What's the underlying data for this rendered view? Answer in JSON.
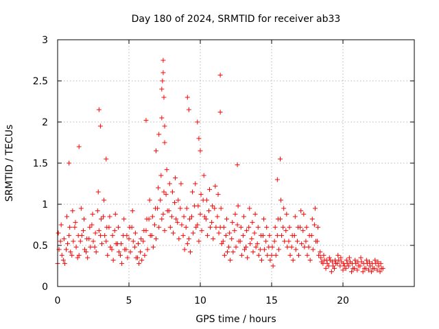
{
  "chart_data": {
    "type": "scatter",
    "title": "Day 180 of 2024, SRMTID for receiver ab33",
    "xlabel": "GPS time / hours",
    "ylabel": "SRMTID / TECUs",
    "xlim": [
      0,
      25
    ],
    "ylim": [
      0,
      3
    ],
    "xticks": [
      0,
      5,
      10,
      15,
      20
    ],
    "xtick_labels": [
      "0",
      "5",
      "10",
      "15",
      "20"
    ],
    "yticks": [
      0,
      0.5,
      1,
      1.5,
      2,
      2.5,
      3
    ],
    "ytick_labels": [
      "0",
      "0.5",
      "1",
      "1.5",
      "2",
      "2.5",
      "3"
    ],
    "grid": true,
    "marker": "+",
    "color": "#ff0000",
    "series": [
      {
        "name": "SRMTID ab33",
        "x": [
          0.0,
          0.2,
          0.4,
          0.6,
          0.8,
          1.0,
          1.2,
          1.4,
          1.6,
          1.8,
          2.0,
          2.2,
          2.4,
          2.6,
          2.8,
          3.0,
          3.2,
          3.4,
          3.6,
          3.8,
          4.0,
          4.2,
          4.4,
          4.6,
          4.8,
          5.0,
          5.2,
          5.4,
          5.6,
          5.8,
          6.0,
          6.2,
          6.4,
          6.6,
          6.8,
          7.0,
          7.2,
          7.4,
          7.6,
          7.8,
          8.0,
          8.2,
          8.4,
          8.6,
          8.8,
          9.0,
          9.2,
          9.4,
          9.6,
          9.8,
          10.0,
          10.2,
          10.4,
          10.6,
          10.8,
          11.0,
          11.2,
          11.4,
          11.6,
          11.8,
          12.0,
          12.2,
          12.4,
          12.6,
          12.8,
          13.0,
          13.2,
          13.4,
          13.6,
          13.8,
          14.0,
          14.2,
          14.4,
          14.6,
          14.8,
          15.0,
          15.2,
          15.4,
          15.6,
          15.8,
          16.0,
          16.2,
          16.4,
          16.6,
          16.8,
          17.0,
          17.2,
          17.4,
          17.6,
          17.8,
          18.0,
          18.2,
          18.4,
          18.6,
          18.8,
          19.0,
          19.2,
          19.4,
          19.6,
          19.8,
          20.0,
          20.2,
          20.4,
          20.6,
          20.8,
          21.0,
          21.2,
          21.4,
          21.6,
          21.8,
          22.0,
          22.2,
          22.4,
          22.6,
          22.8,
          0.1,
          0.3,
          0.5,
          0.7,
          0.9,
          1.1,
          1.3,
          1.5,
          1.7,
          1.9,
          2.1,
          2.3,
          2.5,
          2.7,
          2.9,
          3.1,
          3.3,
          3.5,
          3.7,
          3.9,
          4.1,
          4.3,
          4.5,
          4.7,
          4.9,
          5.1,
          5.3,
          5.5,
          5.7,
          5.9,
          6.1,
          6.3,
          6.5,
          6.7,
          6.9,
          7.1,
          7.3,
          7.5,
          7.7,
          7.9,
          8.1,
          8.3,
          8.5,
          8.7,
          8.9,
          9.1,
          9.3,
          9.5,
          9.7,
          9.9,
          10.1,
          10.3,
          10.5,
          10.7,
          10.9,
          11.1,
          11.3,
          11.5,
          11.7,
          11.9,
          12.1,
          12.3,
          12.5,
          12.7,
          12.9,
          13.1,
          13.3,
          13.5,
          13.7,
          13.9,
          14.1,
          14.3,
          14.5,
          14.7,
          14.9,
          15.1,
          15.3,
          15.5,
          15.7,
          15.9,
          16.1,
          16.3,
          16.5,
          16.7,
          16.9,
          17.1,
          17.3,
          17.5,
          17.7,
          17.9,
          18.1,
          18.3,
          18.5,
          18.7,
          18.9,
          19.1,
          19.3,
          19.5,
          19.7,
          19.9,
          20.1,
          20.3,
          20.5,
          20.7,
          20.9,
          21.1,
          21.3,
          21.5,
          21.7,
          21.9,
          22.1,
          22.3,
          22.5,
          22.7,
          0.05,
          0.25,
          0.45,
          0.65,
          0.85,
          1.05,
          1.25,
          1.45,
          1.65,
          1.85,
          2.05,
          2.25,
          2.45,
          2.65,
          2.85,
          3.05,
          3.25,
          3.45,
          3.65,
          3.85,
          4.05,
          4.25,
          4.45,
          4.65,
          4.85,
          5.05,
          5.25,
          5.45,
          5.65,
          5.85,
          6.05,
          6.25,
          6.45,
          6.65,
          6.85,
          7.05,
          7.25,
          7.45,
          7.65,
          7.85,
          8.05,
          8.25,
          8.45,
          8.65,
          8.85,
          9.05,
          9.25,
          9.45,
          9.65,
          9.85,
          10.05,
          10.25,
          10.45,
          10.65,
          10.85,
          11.05,
          11.25,
          11.45,
          11.65,
          11.85,
          12.05,
          12.25,
          12.45,
          12.65,
          12.85,
          13.05,
          13.25,
          13.45,
          13.65,
          13.85,
          14.05,
          14.25,
          14.45,
          14.65,
          14.85,
          15.05,
          15.25,
          15.45,
          15.65,
          15.85,
          16.05,
          16.25,
          16.45,
          16.65,
          16.85,
          17.05,
          17.25,
          17.45,
          17.65,
          17.85,
          18.05,
          18.25,
          18.45,
          18.65,
          18.85,
          19.05,
          19.25,
          19.45,
          19.65,
          19.85,
          20.05,
          20.25,
          20.45,
          20.65,
          20.85,
          21.05,
          21.25,
          21.45,
          21.65,
          21.85,
          22.05,
          22.25,
          22.45,
          22.65,
          0.8,
          1.5,
          2.9,
          3.0,
          3.4,
          6.2,
          6.9,
          7.1,
          7.3,
          7.3,
          7.35,
          7.4,
          7.4,
          7.45,
          7.5,
          7.5,
          9.1,
          9.2,
          9.8,
          9.9,
          10.0,
          11.4,
          11.4,
          12.6,
          15.6,
          15.4
        ],
        "y": [
          0.28,
          0.55,
          0.32,
          0.45,
          0.62,
          0.38,
          0.72,
          0.35,
          0.55,
          0.68,
          0.42,
          0.58,
          0.75,
          0.48,
          0.92,
          0.62,
          0.85,
          0.55,
          0.72,
          0.45,
          0.68,
          0.52,
          0.38,
          0.62,
          0.45,
          0.58,
          0.72,
          0.48,
          0.35,
          0.42,
          0.55,
          0.68,
          0.82,
          0.62,
          0.75,
          0.95,
          1.05,
          0.88,
          1.12,
          0.92,
          0.85,
          1.02,
          0.78,
          0.95,
          0.62,
          0.72,
          0.58,
          0.85,
          0.98,
          0.75,
          0.88,
          1.05,
          0.82,
          0.92,
          0.78,
          0.95,
          0.85,
          0.72,
          0.55,
          0.62,
          0.48,
          0.58,
          0.68,
          0.75,
          0.55,
          0.62,
          0.48,
          0.72,
          0.58,
          0.65,
          0.52,
          0.45,
          0.62,
          0.55,
          0.48,
          0.38,
          0.55,
          0.62,
          0.82,
          0.72,
          0.68,
          0.55,
          0.48,
          0.62,
          0.55,
          0.72,
          0.68,
          0.55,
          0.48,
          0.62,
          0.75,
          0.55,
          0.42,
          0.28,
          0.22,
          0.25,
          0.18,
          0.22,
          0.28,
          0.25,
          0.2,
          0.22,
          0.25,
          0.18,
          0.22,
          0.2,
          0.25,
          0.18,
          0.22,
          0.2,
          0.18,
          0.22,
          0.2,
          0.18,
          0.22,
          0.45,
          0.38,
          0.28,
          0.52,
          0.42,
          0.55,
          0.48,
          0.38,
          0.62,
          0.45,
          0.35,
          0.48,
          0.55,
          0.42,
          0.68,
          0.52,
          0.62,
          0.38,
          0.48,
          0.32,
          0.52,
          0.42,
          0.28,
          0.45,
          0.35,
          0.42,
          0.55,
          0.35,
          0.28,
          0.32,
          0.38,
          0.45,
          0.62,
          0.48,
          0.58,
          0.72,
          0.82,
          0.68,
          0.92,
          0.72,
          0.65,
          0.82,
          0.58,
          0.75,
          0.45,
          0.52,
          0.42,
          0.65,
          0.72,
          0.55,
          0.68,
          0.85,
          0.62,
          0.72,
          0.58,
          0.72,
          0.65,
          0.52,
          0.38,
          0.42,
          0.32,
          0.42,
          0.48,
          0.55,
          0.38,
          0.45,
          0.35,
          0.52,
          0.42,
          0.48,
          0.38,
          0.32,
          0.45,
          0.38,
          0.32,
          0.25,
          0.38,
          0.45,
          0.62,
          0.55,
          0.48,
          0.38,
          0.32,
          0.45,
          0.38,
          0.52,
          0.48,
          0.38,
          0.32,
          0.45,
          0.55,
          0.38,
          0.3,
          0.32,
          0.28,
          0.32,
          0.25,
          0.28,
          0.32,
          0.3,
          0.25,
          0.28,
          0.3,
          0.22,
          0.28,
          0.25,
          0.3,
          0.22,
          0.28,
          0.25,
          0.22,
          0.28,
          0.25,
          0.22,
          0.65,
          0.75,
          0.58,
          0.85,
          0.72,
          0.92,
          0.78,
          0.62,
          0.95,
          0.82,
          0.58,
          0.72,
          0.88,
          0.65,
          1.15,
          0.82,
          1.05,
          0.72,
          0.85,
          0.62,
          0.88,
          0.72,
          0.52,
          0.82,
          0.62,
          0.72,
          0.92,
          0.65,
          0.52,
          0.58,
          0.68,
          0.82,
          1.05,
          0.85,
          0.95,
          1.2,
          1.35,
          1.15,
          1.42,
          1.25,
          1.15,
          1.32,
          1.05,
          1.25,
          0.85,
          0.95,
          0.82,
          1.15,
          1.25,
          0.98,
          1.12,
          1.35,
          1.05,
          1.18,
          0.98,
          1.22,
          1.12,
          0.95,
          0.72,
          0.82,
          0.65,
          0.78,
          0.88,
          0.98,
          0.72,
          0.85,
          0.68,
          0.95,
          0.78,
          0.88,
          0.72,
          0.62,
          0.82,
          0.72,
          0.62,
          0.48,
          0.72,
          0.82,
          1.05,
          0.95,
          0.88,
          0.72,
          0.62,
          0.85,
          0.72,
          0.92,
          0.88,
          0.72,
          0.62,
          0.82,
          0.95,
          0.72,
          0.35,
          0.38,
          0.32,
          0.35,
          0.3,
          0.32,
          0.38,
          0.35,
          0.28,
          0.32,
          0.35,
          0.28,
          0.32,
          0.3,
          0.35,
          0.28,
          0.32,
          0.3,
          0.28,
          0.32,
          0.3,
          0.28,
          1.5,
          1.7,
          2.15,
          1.95,
          1.55,
          2.02,
          1.65,
          1.85,
          2.05,
          2.4,
          2.5,
          2.6,
          2.75,
          2.3,
          1.75,
          1.95,
          2.3,
          2.15,
          2.0,
          1.8,
          1.65,
          2.57,
          2.12,
          1.48,
          1.55,
          1.3
        ]
      }
    ]
  }
}
